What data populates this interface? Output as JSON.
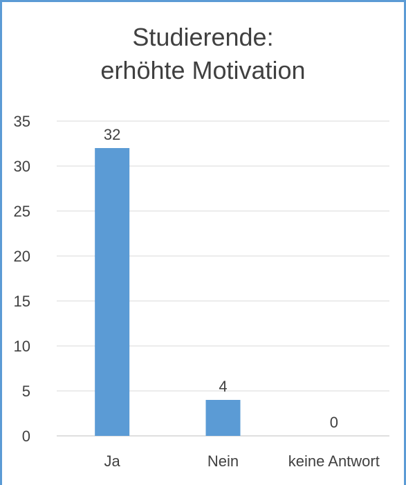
{
  "chart_data": {
    "type": "bar",
    "title_lines": [
      "Studierende:",
      "erhöhte Motivation"
    ],
    "categories": [
      "Ja",
      "Nein",
      "keine Antwort"
    ],
    "values": [
      32,
      4,
      0
    ],
    "data_labels": [
      "32",
      "4",
      "0"
    ],
    "ylim": [
      0,
      35
    ],
    "yticks": [
      "0",
      "5",
      "10",
      "15",
      "20",
      "25",
      "30",
      "35"
    ],
    "grid": true,
    "legend": "none",
    "bar_color": "#5b9bd5"
  }
}
